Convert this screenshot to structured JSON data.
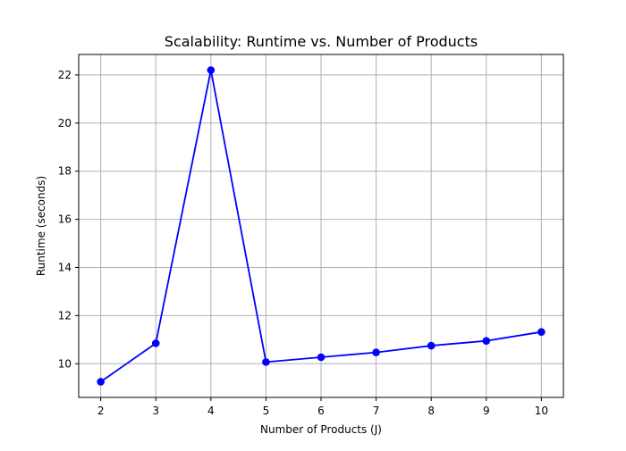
{
  "chart_data": {
    "type": "line",
    "title": "Scalability: Runtime vs. Number of Products",
    "xlabel": "Number of Products (J)",
    "ylabel": "Runtime (seconds)",
    "x": [
      2,
      3,
      4,
      5,
      6,
      7,
      8,
      9,
      10
    ],
    "series": [
      {
        "values": [
          9.25,
          10.85,
          22.2,
          10.07,
          10.27,
          10.47,
          10.75,
          10.95,
          11.32
        ],
        "color": "#0000ff",
        "marker": "circle"
      }
    ],
    "xlim": [
      1.6,
      10.4
    ],
    "ylim": [
      8.6,
      22.85
    ],
    "xticks": [
      "2",
      "3",
      "4",
      "5",
      "6",
      "7",
      "8",
      "9",
      "10"
    ],
    "yticks": [
      "10",
      "12",
      "14",
      "16",
      "18",
      "20",
      "22"
    ],
    "grid": true,
    "gridColor": "#b0b0b0"
  }
}
